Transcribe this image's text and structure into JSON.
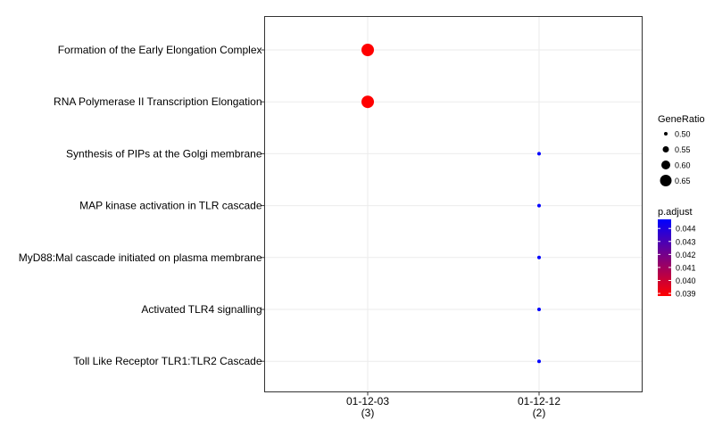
{
  "chart_data": {
    "type": "scatter",
    "title": "",
    "xlabel": "",
    "ylabel": "",
    "categories_x": [
      {
        "label": "01-12-03",
        "count": "(3)"
      },
      {
        "label": "01-12-12",
        "count": "(2)"
      }
    ],
    "categories_y": [
      "Formation of the Early Elongation Complex",
      "RNA Polymerase II Transcription Elongation",
      "Synthesis of PIPs at the Golgi membrane",
      "MAP kinase activation in TLR cascade",
      "MyD88:Mal cascade initiated on plasma membrane",
      "Activated TLR4 signalling",
      "Toll Like Receptor TLR1:TLR2 Cascade"
    ],
    "points": [
      {
        "x": "01-12-03",
        "y": "Formation of the Early Elongation Complex",
        "gene_ratio": 0.667,
        "p_adjust": 0.0388
      },
      {
        "x": "01-12-03",
        "y": "RNA Polymerase II Transcription Elongation",
        "gene_ratio": 0.667,
        "p_adjust": 0.0388
      },
      {
        "x": "01-12-12",
        "y": "Synthesis of PIPs at the Golgi membrane",
        "gene_ratio": 0.5,
        "p_adjust": 0.0447
      },
      {
        "x": "01-12-12",
        "y": "MAP kinase activation in TLR cascade",
        "gene_ratio": 0.5,
        "p_adjust": 0.0447
      },
      {
        "x": "01-12-12",
        "y": "MyD88:Mal cascade initiated on plasma membrane",
        "gene_ratio": 0.5,
        "p_adjust": 0.0447
      },
      {
        "x": "01-12-12",
        "y": "Activated TLR4 signalling",
        "gene_ratio": 0.5,
        "p_adjust": 0.0447
      },
      {
        "x": "01-12-12",
        "y": "Toll Like Receptor TLR1:TLR2 Cascade",
        "gene_ratio": 0.5,
        "p_adjust": 0.0447
      }
    ],
    "grid": true,
    "legend_size": {
      "title": "GeneRatio",
      "entries": [
        {
          "label": "0.50",
          "value": 0.5
        },
        {
          "label": "0.55",
          "value": 0.55
        },
        {
          "label": "0.60",
          "value": 0.6
        },
        {
          "label": "0.65",
          "value": 0.65
        }
      ]
    },
    "legend_color": {
      "title": "p.adjust",
      "ticks": [
        {
          "label": "0.044",
          "value": 0.044
        },
        {
          "label": "0.043",
          "value": 0.043
        },
        {
          "label": "0.042",
          "value": 0.042
        },
        {
          "label": "0.041",
          "value": 0.041
        },
        {
          "label": "0.040",
          "value": 0.04
        },
        {
          "label": "0.039",
          "value": 0.039
        }
      ],
      "range": [
        0.0388,
        0.0447
      ],
      "low_color": "#ff0000",
      "high_color": "#0000ff"
    },
    "legend_placement": "right"
  }
}
